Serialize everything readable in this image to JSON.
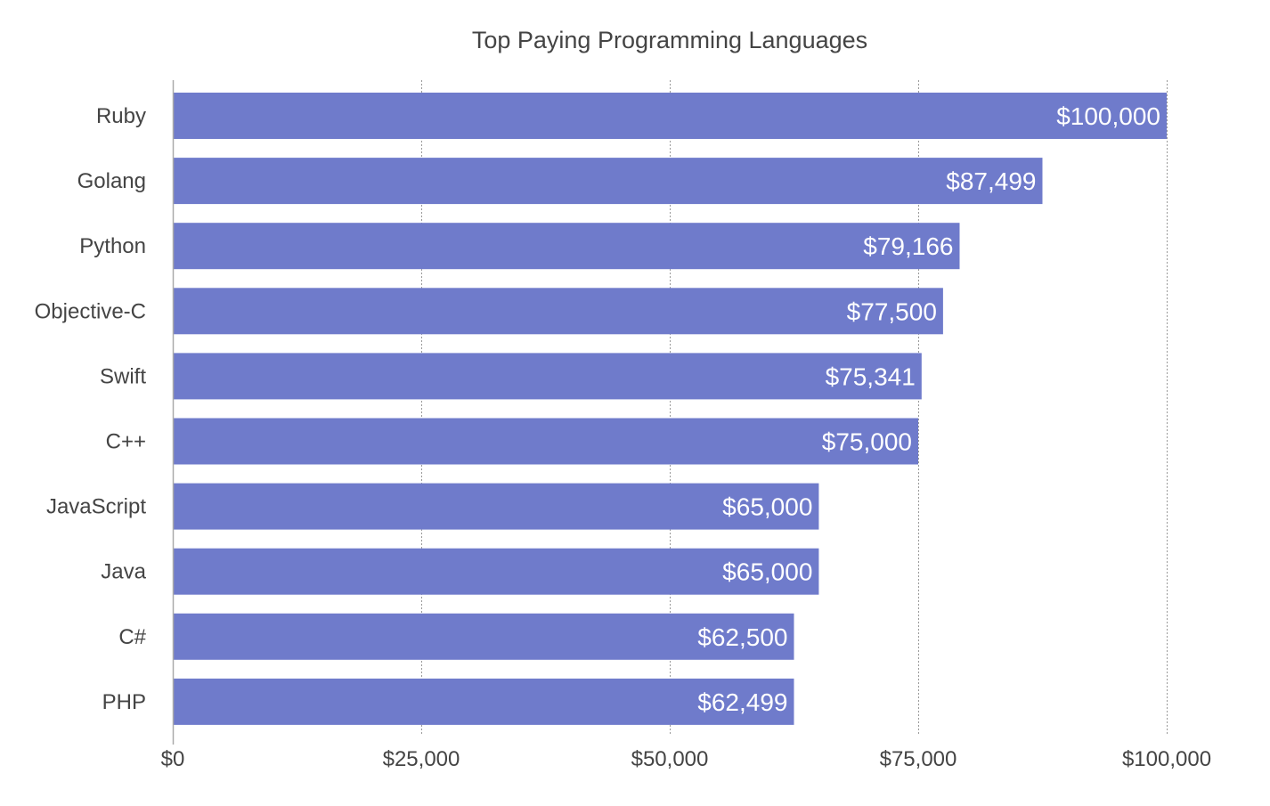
{
  "chart_data": {
    "type": "bar",
    "orientation": "horizontal",
    "title": "Top Paying Programming Languages",
    "xlabel": "",
    "ylabel": "",
    "categories": [
      "Ruby",
      "Golang",
      "Python",
      "Objective-C",
      "Swift",
      "C++",
      "JavaScript",
      "Java",
      "C#",
      "PHP"
    ],
    "values": [
      100000,
      87499,
      79166,
      77500,
      75341,
      75000,
      65000,
      65000,
      62500,
      62499
    ],
    "data_labels": [
      "$100,000",
      "$87,499",
      "$79,166",
      "$77,500",
      "$75,341",
      "$75,000",
      "$65,000",
      "$65,000",
      "$62,500",
      "$62,499"
    ],
    "xlim": [
      0,
      100000
    ],
    "x_ticks": [
      0,
      25000,
      50000,
      75000,
      100000
    ],
    "x_tick_labels": [
      "$0",
      "$25,000",
      "$50,000",
      "$75,000",
      "$100,000"
    ],
    "grid": "vertical dashed",
    "legend": "none",
    "colors": {
      "bar": "#6f7bcb",
      "title": "#444444",
      "tick_text": "#444444",
      "data_label": "#ffffff",
      "grid": "#999999",
      "axis": "#aaaaaa"
    }
  }
}
